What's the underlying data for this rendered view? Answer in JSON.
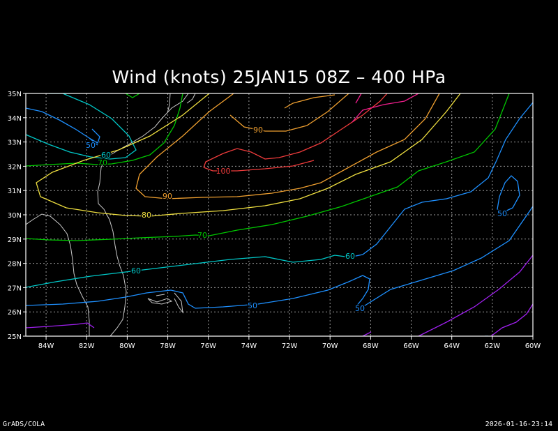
{
  "title": "Wind (knots) 25JAN15 08Z  – 400 HPa",
  "footer": {
    "credit": "GrADS/COLA",
    "timestamp": "2026-01-16-23:14"
  },
  "map": {
    "lon_range": [
      -85,
      -60
    ],
    "lat_range": [
      25,
      35
    ],
    "grid": true,
    "x_ticks": [
      "84W",
      "82W",
      "80W",
      "78W",
      "76W",
      "74W",
      "72W",
      "70W",
      "68W",
      "66W",
      "64W",
      "62W",
      "60W"
    ],
    "y_ticks": [
      "25N",
      "26N",
      "27N",
      "28N",
      "29N",
      "30N",
      "31N",
      "32N",
      "33N",
      "34N",
      "35N"
    ],
    "colors": {
      "c50": "#1e90ff",
      "c60": "#00c8c8",
      "c70": "#00c800",
      "c80": "#f0e040",
      "c90": "#f0a030",
      "c100": "#f03c3c",
      "c110": "#f01e8c",
      "c40": "#a020f0",
      "coast": "#c8c8c8"
    },
    "contour_labels": [
      {
        "text": "50",
        "color": "c50"
      },
      {
        "text": "60",
        "color": "c60"
      },
      {
        "text": "70",
        "color": "c70"
      },
      {
        "text": "90",
        "color": "c90"
      },
      {
        "text": "100",
        "color": "c100"
      },
      {
        "text": "90",
        "color": "c90"
      },
      {
        "text": "80",
        "color": "c80"
      },
      {
        "text": "70",
        "color": "c70"
      },
      {
        "text": "60",
        "color": "c60"
      },
      {
        "text": "60",
        "color": "c60"
      },
      {
        "text": "50",
        "color": "c50"
      },
      {
        "text": "50",
        "color": "c50"
      },
      {
        "text": "50",
        "color": "c50"
      }
    ]
  }
}
